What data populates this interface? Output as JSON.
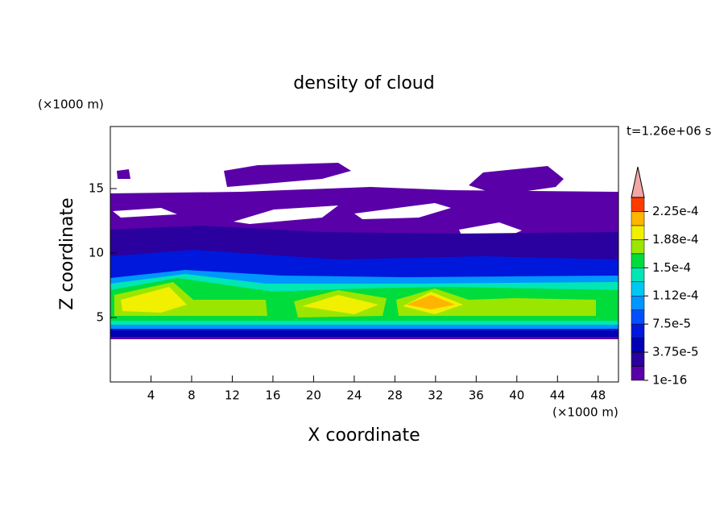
{
  "chart_data": {
    "type": "contour",
    "title": "density of cloud",
    "xlabel": "X coordinate",
    "ylabel": "Z coordinate",
    "x_unit": "(×1000 m)",
    "y_unit": "(×1000 m)",
    "annotation": "t=1.26e+06 s",
    "xlim": [
      0,
      50
    ],
    "ylim": [
      0,
      20
    ],
    "xticks": [
      4,
      8,
      12,
      16,
      20,
      24,
      28,
      32,
      36,
      40,
      44,
      48
    ],
    "yticks": [
      5,
      10,
      15
    ],
    "colorbar": {
      "levels": [
        1e-16,
        1.875e-05,
        3.75e-05,
        5.625e-05,
        7.5e-05,
        9.375e-05,
        0.0001125,
        0.00013125,
        0.00015,
        0.00016875,
        0.0001875,
        0.00020625,
        0.000225,
        0.00024375
      ],
      "colors": [
        "#5a00a8",
        "#2a009e",
        "#0000b4",
        "#0018dc",
        "#0050ff",
        "#0096ff",
        "#00c8f0",
        "#00e6b4",
        "#00dc3c",
        "#9ae600",
        "#f0f000",
        "#ffb400",
        "#ff3c00"
      ],
      "extend_color": "#f4a6a6",
      "ticks": [
        {
          "value": 1e-16,
          "label": "1e-16"
        },
        {
          "value": 3.75e-05,
          "label": "3.75e-5"
        },
        {
          "value": 7.5e-05,
          "label": "7.5e-5"
        },
        {
          "value": 0.0001125,
          "label": "1.12e-4"
        },
        {
          "value": 0.00015,
          "label": "1.5e-4"
        },
        {
          "value": 0.0001875,
          "label": "1.88e-4"
        },
        {
          "value": 0.000225,
          "label": "2.25e-4"
        }
      ]
    }
  }
}
